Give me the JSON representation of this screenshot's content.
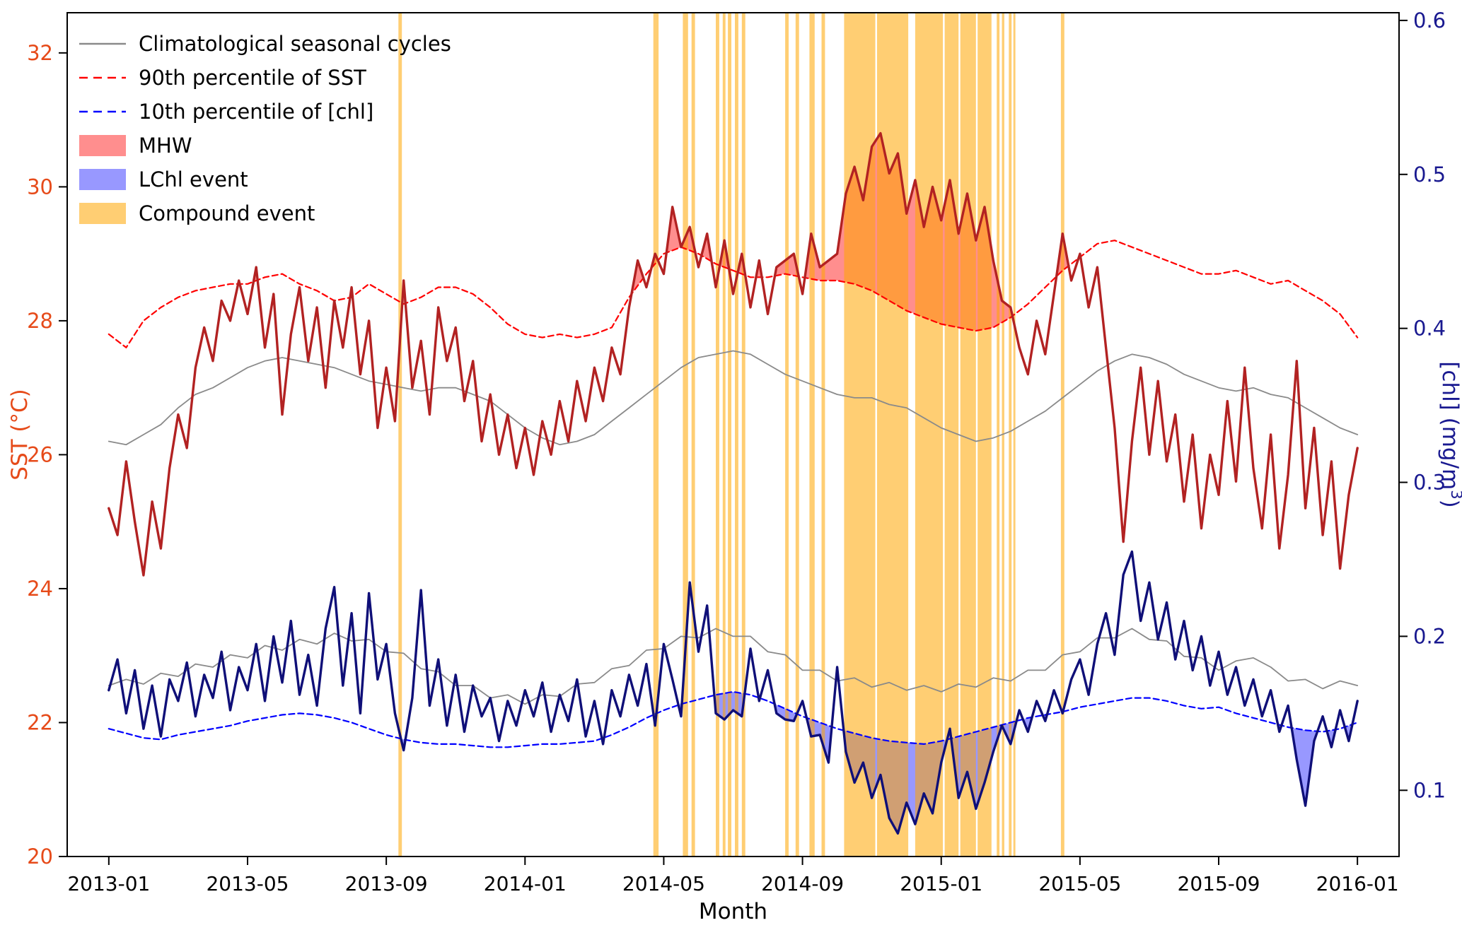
{
  "chart_data": {
    "type": "line",
    "title": "",
    "labels": {
      "xlabel": "Month",
      "ylabel_left": "SST (°C)",
      "ylabel_right_parts": {
        "pre": "[chl] (mg/m",
        "sup": "3",
        "post": ")"
      }
    },
    "axes": {
      "x": {
        "unit": "months since 2013-01",
        "range": [
          -1.2,
          37.2
        ],
        "tick_values": [
          0,
          4,
          8,
          12,
          16,
          20,
          24,
          28,
          32,
          36
        ],
        "tick_labels": [
          "2013-01",
          "2013-05",
          "2013-09",
          "2014-01",
          "2014-05",
          "2014-09",
          "2015-01",
          "2015-05",
          "2015-09",
          "2016-01"
        ],
        "color": "#000000"
      },
      "y_left": {
        "range": [
          20,
          32.6
        ],
        "tick_values": [
          20,
          22,
          24,
          26,
          28,
          30,
          32
        ],
        "tick_labels": [
          "20",
          "22",
          "24",
          "26",
          "28",
          "30",
          "32"
        ],
        "color": "#e64a19"
      },
      "y_right": {
        "range": [
          0.057,
          0.605
        ],
        "tick_values": [
          0.1,
          0.2,
          0.3,
          0.4,
          0.5,
          0.6
        ],
        "tick_labels": [
          "0.1",
          "0.2",
          "0.3",
          "0.4",
          "0.5",
          "0.6"
        ],
        "color": "#191990"
      }
    },
    "legend": {
      "items": [
        {
          "label": "Climatological seasonal cycles",
          "swatch": "line",
          "color": "#8a8a8a",
          "dash": null
        },
        {
          "label": "90th percentile of SST",
          "swatch": "line",
          "color": "#ff0000",
          "dash": "12 8"
        },
        {
          "label": "10th percentile of [chl]",
          "swatch": "line",
          "color": "#0000ff",
          "dash": "12 8"
        },
        {
          "label": "MHW",
          "swatch": "patch",
          "color": "rgba(255,30,30,0.5)"
        },
        {
          "label": "LChl event",
          "swatch": "patch",
          "color": "rgba(50,50,255,0.5)"
        },
        {
          "label": "Compound event",
          "swatch": "patch",
          "color": "rgba(255,165,0,0.55)"
        }
      ]
    },
    "draw_order": [
      "clim_sst",
      "clim_chl",
      "p90_sst",
      "p10_chl",
      "sst",
      "chl"
    ],
    "fills": [
      {
        "name": "mhw-fill",
        "upper": "sst",
        "lower": "p90_sst",
        "axis": "sst",
        "color": "rgba(255,30,30,0.5)"
      },
      {
        "name": "lchl-fill",
        "upper": "p10_chl",
        "lower": "chl",
        "axis": "chl",
        "color": "rgba(50,50,255,0.5)"
      }
    ],
    "events": {
      "compound_color": "rgba(255,165,0,0.55)",
      "compound_spans": [
        [
          8.35,
          8.45
        ],
        [
          15.7,
          15.85
        ],
        [
          16.55,
          16.7
        ],
        [
          16.8,
          16.9
        ],
        [
          17.5,
          17.6
        ],
        [
          17.7,
          17.78
        ],
        [
          17.85,
          17.95
        ],
        [
          18.05,
          18.15
        ],
        [
          18.25,
          18.35
        ],
        [
          19.5,
          19.6
        ],
        [
          19.8,
          19.9
        ],
        [
          20.2,
          20.35
        ],
        [
          20.55,
          20.65
        ],
        [
          21.2,
          22.1
        ],
        [
          22.15,
          23.05
        ],
        [
          23.25,
          24.05
        ],
        [
          24.1,
          24.5
        ],
        [
          24.55,
          25.0
        ],
        [
          25.05,
          25.45
        ],
        [
          25.6,
          25.68
        ],
        [
          25.75,
          25.82
        ],
        [
          25.95,
          26.03
        ],
        [
          26.08,
          26.14
        ],
        [
          27.45,
          27.55
        ]
      ]
    },
    "series": {
      "sst": {
        "name": "SST",
        "axis": "sst",
        "color": "#b22222",
        "width": 3.4,
        "dash": null,
        "x_start": 0,
        "x_step": 0.25,
        "values": [
          25.2,
          24.8,
          25.9,
          25.0,
          24.2,
          25.3,
          24.6,
          25.8,
          26.6,
          26.1,
          27.3,
          27.9,
          27.4,
          28.3,
          28.0,
          28.6,
          28.1,
          28.8,
          27.6,
          28.4,
          26.6,
          27.8,
          28.5,
          27.4,
          28.2,
          27.0,
          28.3,
          27.6,
          28.5,
          27.2,
          28.0,
          26.4,
          27.3,
          26.5,
          28.6,
          27.0,
          27.7,
          26.6,
          28.2,
          27.4,
          27.9,
          26.8,
          27.4,
          26.2,
          26.9,
          26.0,
          26.6,
          25.8,
          26.4,
          25.7,
          26.5,
          26.0,
          26.8,
          26.2,
          27.1,
          26.5,
          27.3,
          26.8,
          27.6,
          27.2,
          28.2,
          28.9,
          28.5,
          29.0,
          28.7,
          29.7,
          29.1,
          29.4,
          28.8,
          29.3,
          28.5,
          29.2,
          28.4,
          29.0,
          28.2,
          28.9,
          28.1,
          28.8,
          28.9,
          29.0,
          28.4,
          29.3,
          28.8,
          28.9,
          29.0,
          29.9,
          30.3,
          29.8,
          30.6,
          30.8,
          30.2,
          30.5,
          29.6,
          30.1,
          29.4,
          30.0,
          29.5,
          30.1,
          29.3,
          29.9,
          29.2,
          29.7,
          28.9,
          28.3,
          28.2,
          27.6,
          27.2,
          28.0,
          27.5,
          28.4,
          29.3,
          28.6,
          29.0,
          28.2,
          28.8,
          27.6,
          26.4,
          24.7,
          26.2,
          27.3,
          26.0,
          27.1,
          25.9,
          26.6,
          25.3,
          26.3,
          24.9,
          26.0,
          25.4,
          26.8,
          25.6,
          27.3,
          25.8,
          24.9,
          26.3,
          24.6,
          25.7,
          27.4,
          25.2,
          26.4,
          24.8,
          25.9,
          24.3,
          25.4,
          26.1
        ]
      },
      "chl": {
        "name": "[chl]",
        "axis": "chl",
        "color": "#0f0f78",
        "width": 3.4,
        "dash": null,
        "x_start": 0,
        "x_step": 0.25,
        "values": [
          0.165,
          0.185,
          0.15,
          0.178,
          0.14,
          0.168,
          0.135,
          0.172,
          0.158,
          0.183,
          0.148,
          0.175,
          0.16,
          0.19,
          0.152,
          0.18,
          0.165,
          0.195,
          0.158,
          0.2,
          0.17,
          0.21,
          0.162,
          0.188,
          0.155,
          0.205,
          0.232,
          0.168,
          0.215,
          0.15,
          0.228,
          0.172,
          0.195,
          0.15,
          0.126,
          0.16,
          0.23,
          0.155,
          0.185,
          0.142,
          0.175,
          0.138,
          0.168,
          0.148,
          0.16,
          0.132,
          0.158,
          0.142,
          0.165,
          0.148,
          0.17,
          0.138,
          0.162,
          0.145,
          0.172,
          0.135,
          0.158,
          0.13,
          0.165,
          0.148,
          0.175,
          0.155,
          0.182,
          0.142,
          0.195,
          0.172,
          0.148,
          0.235,
          0.19,
          0.22,
          0.15,
          0.146,
          0.152,
          0.148,
          0.192,
          0.158,
          0.178,
          0.15,
          0.146,
          0.145,
          0.158,
          0.135,
          0.136,
          0.118,
          0.18,
          0.125,
          0.105,
          0.118,
          0.095,
          0.11,
          0.082,
          0.072,
          0.092,
          0.078,
          0.098,
          0.085,
          0.118,
          0.14,
          0.095,
          0.112,
          0.088,
          0.105,
          0.125,
          0.142,
          0.13,
          0.152,
          0.138,
          0.158,
          0.145,
          0.165,
          0.15,
          0.172,
          0.185,
          0.162,
          0.195,
          0.215,
          0.188,
          0.24,
          0.255,
          0.21,
          0.235,
          0.198,
          0.222,
          0.185,
          0.21,
          0.178,
          0.2,
          0.168,
          0.19,
          0.162,
          0.18,
          0.155,
          0.172,
          0.148,
          0.165,
          0.138,
          0.155,
          0.12,
          0.09,
          0.132,
          0.148,
          0.128,
          0.152,
          0.132,
          0.158
        ]
      },
      "clim_sst": {
        "name": "Climatological seasonal cycle (SST)",
        "axis": "sst",
        "color": "#8a8a8a",
        "width": 1.8,
        "dash": null,
        "x_start": 0,
        "x_step": 0.5,
        "values": [
          26.2,
          26.15,
          26.3,
          26.45,
          26.7,
          26.9,
          27.0,
          27.15,
          27.3,
          27.4,
          27.45,
          27.4,
          27.35,
          27.3,
          27.2,
          27.1,
          27.05,
          27.0,
          26.95,
          27.0,
          27.0,
          26.9,
          26.8,
          26.6,
          26.4,
          26.25,
          26.15,
          26.2,
          26.3,
          26.5,
          26.7,
          26.9,
          27.1,
          27.3,
          27.45,
          27.5,
          27.55,
          27.5,
          27.35,
          27.2,
          27.1,
          27.0,
          26.9,
          26.85,
          26.85,
          26.75,
          26.7,
          26.55,
          26.4,
          26.3,
          26.2,
          26.25,
          26.35,
          26.5,
          26.65,
          26.85,
          27.05,
          27.25,
          27.4,
          27.5,
          27.45,
          27.35,
          27.2,
          27.1,
          27.0,
          26.95,
          27.0,
          26.9,
          26.85,
          26.7,
          26.55,
          26.4,
          26.3
        ]
      },
      "clim_chl": {
        "name": "Climatological seasonal cycle ([chl])",
        "axis": "chl",
        "color": "#8a8a8a",
        "width": 1.8,
        "dash": null,
        "x_start": 0,
        "x_step": 0.5,
        "values": [
          0.168,
          0.172,
          0.169,
          0.176,
          0.174,
          0.182,
          0.18,
          0.188,
          0.186,
          0.194,
          0.191,
          0.198,
          0.195,
          0.202,
          0.197,
          0.198,
          0.19,
          0.189,
          0.179,
          0.177,
          0.168,
          0.168,
          0.16,
          0.162,
          0.156,
          0.162,
          0.161,
          0.169,
          0.17,
          0.179,
          0.181,
          0.191,
          0.192,
          0.2,
          0.199,
          0.205,
          0.2,
          0.2,
          0.19,
          0.188,
          0.178,
          0.178,
          0.171,
          0.173,
          0.167,
          0.17,
          0.165,
          0.168,
          0.164,
          0.169,
          0.167,
          0.173,
          0.171,
          0.178,
          0.178,
          0.188,
          0.19,
          0.199,
          0.199,
          0.205,
          0.198,
          0.197,
          0.187,
          0.186,
          0.178,
          0.184,
          0.186,
          0.18,
          0.171,
          0.172,
          0.166,
          0.171,
          0.168
        ]
      },
      "p90_sst": {
        "name": "90th percentile of SST",
        "axis": "sst",
        "color": "#ff0000",
        "width": 2.2,
        "dash": "8 5",
        "x_start": 0,
        "x_step": 0.5,
        "values": [
          27.8,
          27.6,
          28.0,
          28.2,
          28.35,
          28.45,
          28.5,
          28.55,
          28.55,
          28.65,
          28.7,
          28.55,
          28.45,
          28.3,
          28.35,
          28.55,
          28.4,
          28.25,
          28.35,
          28.5,
          28.5,
          28.4,
          28.2,
          27.95,
          27.8,
          27.75,
          27.8,
          27.75,
          27.8,
          27.9,
          28.35,
          28.7,
          29.0,
          29.1,
          29.0,
          28.85,
          28.75,
          28.65,
          28.65,
          28.7,
          28.65,
          28.6,
          28.6,
          28.55,
          28.45,
          28.3,
          28.15,
          28.05,
          27.95,
          27.9,
          27.85,
          27.9,
          28.05,
          28.25,
          28.5,
          28.75,
          28.95,
          29.15,
          29.2,
          29.1,
          29.0,
          28.9,
          28.8,
          28.7,
          28.7,
          28.75,
          28.65,
          28.55,
          28.6,
          28.45,
          28.3,
          28.1,
          27.75
        ]
      },
      "p10_chl": {
        "name": "10th percentile of [chl]",
        "axis": "chl",
        "color": "#0000ff",
        "width": 2.2,
        "dash": "8 5",
        "x_start": 0,
        "x_step": 0.5,
        "values": [
          0.14,
          0.137,
          0.134,
          0.133,
          0.136,
          0.138,
          0.14,
          0.142,
          0.145,
          0.147,
          0.149,
          0.15,
          0.149,
          0.147,
          0.144,
          0.14,
          0.136,
          0.133,
          0.131,
          0.13,
          0.13,
          0.129,
          0.128,
          0.128,
          0.129,
          0.13,
          0.13,
          0.131,
          0.132,
          0.136,
          0.141,
          0.147,
          0.152,
          0.156,
          0.159,
          0.162,
          0.164,
          0.162,
          0.158,
          0.153,
          0.148,
          0.144,
          0.14,
          0.137,
          0.134,
          0.132,
          0.131,
          0.13,
          0.132,
          0.135,
          0.138,
          0.141,
          0.144,
          0.147,
          0.149,
          0.151,
          0.154,
          0.156,
          0.158,
          0.16,
          0.16,
          0.158,
          0.155,
          0.153,
          0.154,
          0.15,
          0.147,
          0.144,
          0.141,
          0.139,
          0.138,
          0.14,
          0.144
        ]
      }
    }
  }
}
